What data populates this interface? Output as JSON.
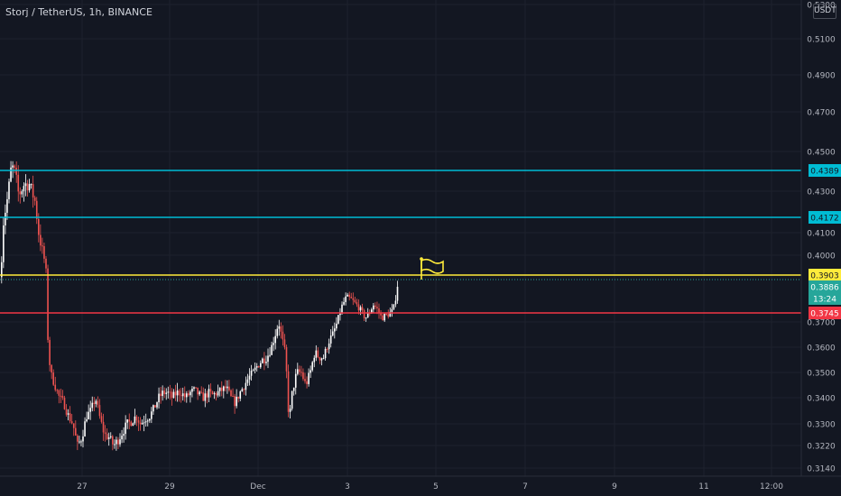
{
  "header": {
    "title": "Storj / TetherUS, 1h, BINANCE",
    "currency": "USDT"
  },
  "chart_data": {
    "type": "candlestick",
    "title": "Storj / TetherUS, 1h, BINANCE",
    "y_axis": {
      "ticks": [
        "0.5300",
        "0.5100",
        "0.4900",
        "0.4700",
        "0.4500",
        "0.4300",
        "0.4100",
        "0.4000",
        "0.3700",
        "0.3600",
        "0.3500",
        "0.3400",
        "0.3300",
        "0.3220",
        "0.3140"
      ],
      "tick_values": [
        0.53,
        0.51,
        0.49,
        0.47,
        0.45,
        0.43,
        0.41,
        0.4,
        0.37,
        0.36,
        0.35,
        0.34,
        0.33,
        0.322,
        0.314
      ]
    },
    "x_axis": {
      "ticks": [
        "27",
        "29",
        "Dec",
        "3",
        "5",
        "7",
        "9",
        "11",
        "12:00"
      ]
    },
    "horizontal_lines": [
      {
        "value": 0.4389,
        "label": "0.4389",
        "color": "#00bcd4"
      },
      {
        "value": 0.4172,
        "label": "0.4172",
        "color": "#00bcd4"
      },
      {
        "value": 0.3903,
        "label": "0.3903",
        "color": "#ffeb3b"
      },
      {
        "value": 0.3745,
        "label": "0.3745",
        "color": "#f23645"
      }
    ],
    "last_price": {
      "value": 0.3886,
      "label": "0.3886",
      "countdown": "13:24",
      "color": "#26a69a"
    },
    "flag_marker": {
      "color": "#ffeb3b"
    },
    "candles_path": [
      [
        0,
        0.39
      ],
      [
        3,
        0.415
      ],
      [
        8,
        0.428
      ],
      [
        12,
        0.442
      ],
      [
        16,
        0.438
      ],
      [
        20,
        0.428
      ],
      [
        26,
        0.433
      ],
      [
        32,
        0.433
      ],
      [
        38,
        0.425
      ],
      [
        42,
        0.41
      ],
      [
        46,
        0.402
      ],
      [
        50,
        0.395
      ],
      [
        52,
        0.365
      ],
      [
        55,
        0.35
      ],
      [
        60,
        0.345
      ],
      [
        65,
        0.34
      ],
      [
        70,
        0.338
      ],
      [
        75,
        0.333
      ],
      [
        80,
        0.33
      ],
      [
        85,
        0.322
      ],
      [
        90,
        0.325
      ],
      [
        95,
        0.333
      ],
      [
        100,
        0.335
      ],
      [
        105,
        0.34
      ],
      [
        110,
        0.332
      ],
      [
        115,
        0.326
      ],
      [
        120,
        0.325
      ],
      [
        125,
        0.322
      ],
      [
        130,
        0.324
      ],
      [
        135,
        0.327
      ],
      [
        140,
        0.33
      ],
      [
        145,
        0.331
      ],
      [
        150,
        0.333
      ],
      [
        155,
        0.33
      ],
      [
        160,
        0.332
      ],
      [
        165,
        0.333
      ],
      [
        170,
        0.336
      ],
      [
        175,
        0.34
      ],
      [
        180,
        0.342
      ],
      [
        185,
        0.342
      ],
      [
        190,
        0.34
      ],
      [
        195,
        0.342
      ],
      [
        200,
        0.342
      ],
      [
        205,
        0.34
      ],
      [
        210,
        0.342
      ],
      [
        215,
        0.343
      ],
      [
        220,
        0.341
      ],
      [
        225,
        0.34
      ],
      [
        230,
        0.342
      ],
      [
        235,
        0.341
      ],
      [
        240,
        0.342
      ],
      [
        245,
        0.343
      ],
      [
        250,
        0.344
      ],
      [
        255,
        0.34
      ],
      [
        260,
        0.338
      ],
      [
        265,
        0.342
      ],
      [
        270,
        0.345
      ],
      [
        275,
        0.348
      ],
      [
        280,
        0.35
      ],
      [
        285,
        0.353
      ],
      [
        290,
        0.355
      ],
      [
        295,
        0.356
      ],
      [
        300,
        0.36
      ],
      [
        305,
        0.366
      ],
      [
        308,
        0.37
      ],
      [
        312,
        0.363
      ],
      [
        316,
        0.356
      ],
      [
        318,
        0.338
      ],
      [
        320,
        0.332
      ],
      [
        323,
        0.342
      ],
      [
        328,
        0.35
      ],
      [
        333,
        0.35
      ],
      [
        338,
        0.345
      ],
      [
        343,
        0.35
      ],
      [
        348,
        0.358
      ],
      [
        353,
        0.356
      ],
      [
        358,
        0.356
      ],
      [
        363,
        0.362
      ],
      [
        368,
        0.365
      ],
      [
        373,
        0.37
      ],
      [
        378,
        0.378
      ],
      [
        383,
        0.383
      ],
      [
        388,
        0.382
      ],
      [
        392,
        0.38
      ],
      [
        396,
        0.378
      ],
      [
        400,
        0.375
      ],
      [
        404,
        0.372
      ],
      [
        408,
        0.374
      ],
      [
        413,
        0.379
      ],
      [
        418,
        0.376
      ],
      [
        422,
        0.372
      ],
      [
        426,
        0.373
      ],
      [
        430,
        0.374
      ],
      [
        435,
        0.376
      ],
      [
        440,
        0.3886
      ]
    ]
  }
}
